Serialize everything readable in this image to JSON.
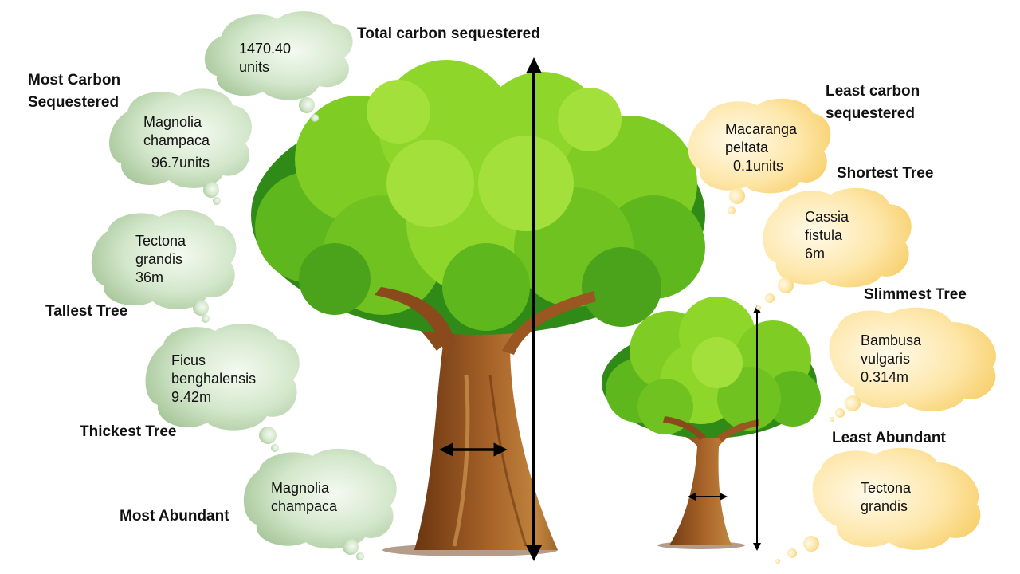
{
  "total_carbon": {
    "heading": "Total carbon sequestered",
    "value": "1470.40",
    "unit": "units"
  },
  "most_carbon": {
    "heading_line1": "Most Carbon",
    "heading_line2": "Sequestered",
    "species_line1": "Magnolia",
    "species_line2": "champaca",
    "value": "96.7units"
  },
  "tallest": {
    "heading": "Tallest Tree",
    "species_line1": "Tectona",
    "species_line2": "grandis",
    "value": "36m"
  },
  "thickest": {
    "heading": "Thickest Tree",
    "species_line1": "Ficus",
    "species_line2": "benghalensis",
    "value": "9.42m"
  },
  "most_abundant": {
    "heading": "Most Abundant",
    "species_line1": "Magnolia",
    "species_line2": "champaca"
  },
  "least_carbon": {
    "heading_line1": "Least carbon",
    "heading_line2": "sequestered",
    "species_line1": "Macaranga",
    "species_line2": "peltata",
    "value": "0.1units"
  },
  "shortest": {
    "heading": "Shortest Tree",
    "species_line1": "Cassia",
    "species_line2": "fistula",
    "value": "6m"
  },
  "slimmest": {
    "heading": "Slimmest Tree",
    "species_line1": "Bambusa",
    "species_line2": "vulgaris",
    "value": "0.314m"
  },
  "least_abundant": {
    "heading": "Least Abundant",
    "species_line1": "Tectona",
    "species_line2": "grandis"
  },
  "colors": {
    "green_bubble_light": "#eef6ea",
    "green_bubble_dark": "#9dbf8e",
    "yellow_bubble_light": "#fff4d6",
    "yellow_bubble_dark": "#f7cf6c",
    "foliage_light": "#8fd62a",
    "foliage_mid": "#5fb71e",
    "foliage_dark": "#2f8a17",
    "trunk": "#8a4a1c",
    "trunk_light": "#b8742e"
  }
}
